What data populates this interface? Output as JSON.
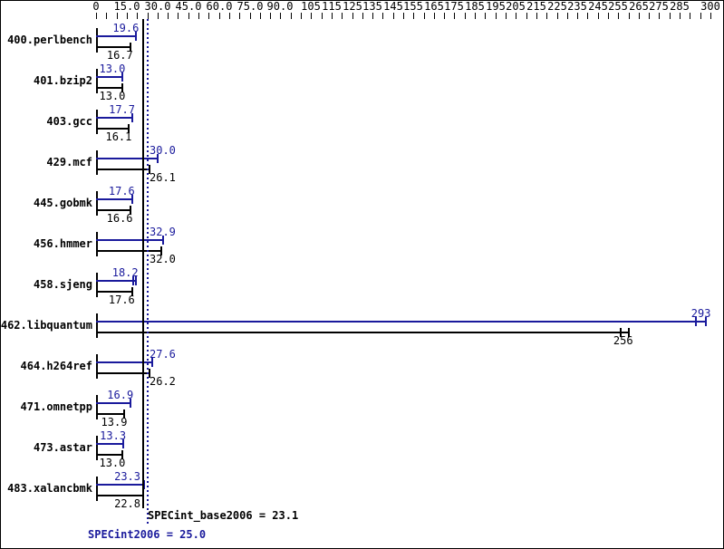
{
  "colors": {
    "accent_blue": "#1a1a9c",
    "bar_black": "#000000",
    "background": "#ffffff",
    "border": "#000000"
  },
  "axis": {
    "min": 0,
    "max": 300,
    "minor_step": 5,
    "ticks": [
      {
        "value": 0,
        "label": "0"
      },
      {
        "value": 15,
        "label": "15.0"
      },
      {
        "value": 30,
        "label": "30.0"
      },
      {
        "value": 45,
        "label": "45.0"
      },
      {
        "value": 60,
        "label": "60.0"
      },
      {
        "value": 75,
        "label": "75.0"
      },
      {
        "value": 90,
        "label": "90.0"
      },
      {
        "value": 105,
        "label": "105"
      },
      {
        "value": 115,
        "label": "115"
      },
      {
        "value": 125,
        "label": "125"
      },
      {
        "value": 135,
        "label": "135"
      },
      {
        "value": 145,
        "label": "145"
      },
      {
        "value": 155,
        "label": "155"
      },
      {
        "value": 165,
        "label": "165"
      },
      {
        "value": 175,
        "label": "175"
      },
      {
        "value": 185,
        "label": "185"
      },
      {
        "value": 195,
        "label": "195"
      },
      {
        "value": 205,
        "label": "205"
      },
      {
        "value": 215,
        "label": "215"
      },
      {
        "value": 225,
        "label": "225"
      },
      {
        "value": 235,
        "label": "235"
      },
      {
        "value": 245,
        "label": "245"
      },
      {
        "value": 255,
        "label": "255"
      },
      {
        "value": 265,
        "label": "265"
      },
      {
        "value": 275,
        "label": "275"
      },
      {
        "value": 285,
        "label": "285"
      },
      {
        "value": 300,
        "label": "300"
      }
    ]
  },
  "benchmarks": [
    {
      "name": "400.perlbench",
      "peak": "19.6",
      "base": "16.7"
    },
    {
      "name": "401.bzip2",
      "peak": "13.0",
      "base": "13.0"
    },
    {
      "name": "403.gcc",
      "peak": "17.7",
      "base": "16.1"
    },
    {
      "name": "429.mcf",
      "peak": "30.0",
      "base": "26.1"
    },
    {
      "name": "445.gobmk",
      "peak": "17.6",
      "base": "16.6"
    },
    {
      "name": "456.hmmer",
      "peak": "32.9",
      "base": "32.0"
    },
    {
      "name": "458.sjeng",
      "peak": "18.2",
      "base": "17.6",
      "peak_extra_tick": 19.3
    },
    {
      "name": "462.libquantum",
      "peak": "293",
      "base": "256",
      "peak_extra_tick": 298,
      "base_extra_tick": 260
    },
    {
      "name": "464.h264ref",
      "peak": "27.6",
      "base": "26.2"
    },
    {
      "name": "471.omnetpp",
      "peak": "16.9",
      "base": "13.9"
    },
    {
      "name": "473.astar",
      "peak": "13.3",
      "base": "13.0"
    },
    {
      "name": "483.xalancbmk",
      "peak": "23.3",
      "base": "22.8"
    }
  ],
  "footer": {
    "base_label": "SPECint_base2006 = 23.1",
    "peak_label": "SPECint2006 = 25.0"
  },
  "chart_data": {
    "type": "bar",
    "orientation": "horizontal",
    "title": "",
    "xlabel": "",
    "ylabel": "",
    "xlim": [
      0,
      300
    ],
    "grid": false,
    "legend_position": "none",
    "categories": [
      "400.perlbench",
      "401.bzip2",
      "403.gcc",
      "429.mcf",
      "445.gobmk",
      "456.hmmer",
      "458.sjeng",
      "462.libquantum",
      "464.h264ref",
      "471.omnetpp",
      "473.astar",
      "483.xalancbmk"
    ],
    "series": [
      {
        "name": "SPECint2006 (peak)",
        "color": "#1a1a9c",
        "values": [
          19.6,
          13.0,
          17.7,
          30.0,
          17.6,
          32.9,
          18.2,
          293,
          27.6,
          16.9,
          13.3,
          23.3
        ]
      },
      {
        "name": "SPECint_base2006 (base)",
        "color": "#000000",
        "values": [
          16.7,
          13.0,
          16.1,
          26.1,
          16.6,
          32.0,
          17.6,
          256,
          26.2,
          13.9,
          13.0,
          22.8
        ]
      }
    ],
    "reference_lines": [
      {
        "label": "SPECint_base2006 = 23.1",
        "value": 23.1,
        "style": "solid",
        "color": "#000000"
      },
      {
        "label": "SPECint2006 = 25.0",
        "value": 25.0,
        "style": "dotted",
        "color": "#1a1a9c"
      }
    ],
    "x_tick_labels": [
      "0",
      "15.0",
      "30.0",
      "45.0",
      "60.0",
      "75.0",
      "90.0",
      "105",
      "115",
      "125",
      "135",
      "145",
      "155",
      "165",
      "175",
      "185",
      "195",
      "205",
      "215",
      "225",
      "235",
      "245",
      "255",
      "265",
      "275",
      "285",
      "300"
    ]
  }
}
